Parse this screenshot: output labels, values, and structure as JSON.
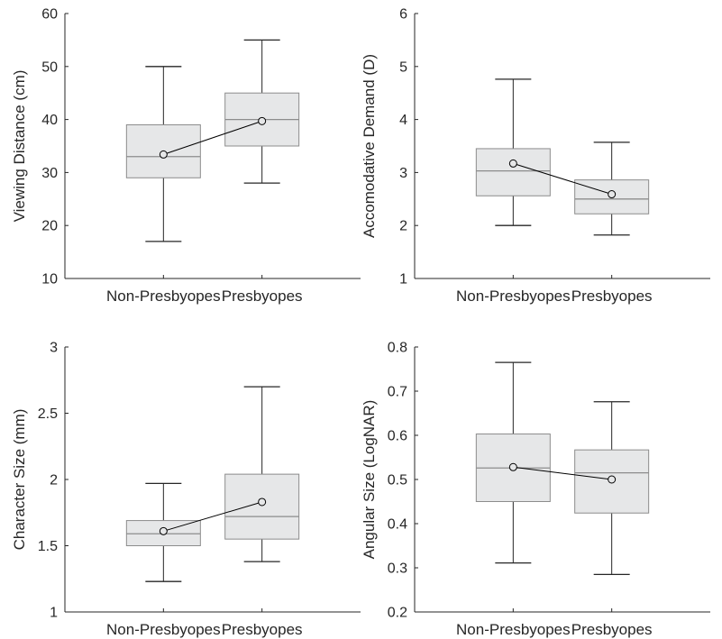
{
  "colors": {
    "axis": "#262626",
    "box_fill": "#e6e7e8",
    "box_stroke": "#8c8c8c",
    "whisker": "#262626",
    "median": "#8c8c8c",
    "mean_line": "#000000"
  },
  "chart_data": [
    {
      "type": "box",
      "ylabel": "Viewing Distance (cm)",
      "ylim": [
        10,
        60
      ],
      "yticks": [
        10,
        20,
        30,
        40,
        50,
        60
      ],
      "categories": [
        "Non-Presbyopes",
        "Presbyopes"
      ],
      "boxes": [
        {
          "min": 17,
          "q1": 29,
          "median": 33,
          "q3": 39,
          "max": 50,
          "mean": 33.4
        },
        {
          "min": 28,
          "q1": 35,
          "median": 40,
          "q3": 45,
          "max": 55,
          "mean": 39.7
        }
      ]
    },
    {
      "type": "box",
      "ylabel": "Accomodative Demand (D)",
      "ylim": [
        1,
        6
      ],
      "yticks": [
        1,
        2,
        3,
        4,
        5,
        6
      ],
      "categories": [
        "Non-Presbyopes",
        "Presbyopes"
      ],
      "boxes": [
        {
          "min": 2.0,
          "q1": 2.56,
          "median": 3.03,
          "q3": 3.45,
          "max": 4.76,
          "mean": 3.17
        },
        {
          "min": 1.82,
          "q1": 2.22,
          "median": 2.5,
          "q3": 2.86,
          "max": 3.57,
          "mean": 2.59
        }
      ]
    },
    {
      "type": "box",
      "ylabel": "Character Size (mm)",
      "ylim": [
        1,
        3
      ],
      "yticks": [
        1,
        1.5,
        2,
        2.5,
        3
      ],
      "categories": [
        "Non-Presbyopes",
        "Presbyopes"
      ],
      "boxes": [
        {
          "min": 1.23,
          "q1": 1.5,
          "median": 1.59,
          "q3": 1.69,
          "max": 1.97,
          "mean": 1.61
        },
        {
          "min": 1.38,
          "q1": 1.55,
          "median": 1.72,
          "q3": 2.04,
          "max": 2.7,
          "mean": 1.83
        }
      ]
    },
    {
      "type": "box",
      "ylabel": "Angular Size (LogNAR)",
      "ylim": [
        0.2,
        0.8
      ],
      "yticks": [
        0.2,
        0.3,
        0.4,
        0.5,
        0.6,
        0.7,
        0.8
      ],
      "categories": [
        "Non-Presbyopes",
        "Presbyopes"
      ],
      "boxes": [
        {
          "min": 0.311,
          "q1": 0.45,
          "median": 0.526,
          "q3": 0.603,
          "max": 0.765,
          "mean": 0.528
        },
        {
          "min": 0.285,
          "q1": 0.424,
          "median": 0.515,
          "q3": 0.567,
          "max": 0.676,
          "mean": 0.5
        }
      ]
    }
  ]
}
